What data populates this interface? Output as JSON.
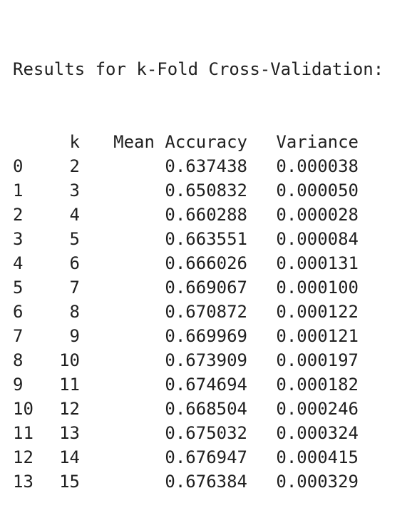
{
  "output": {
    "title": "Results for k-Fold Cross-Validation:",
    "columns": [
      "k",
      "Mean Accuracy",
      "Variance"
    ],
    "rows": [
      {
        "index": "0",
        "k": "2",
        "mean_accuracy": "0.637438",
        "variance": "0.000038"
      },
      {
        "index": "1",
        "k": "3",
        "mean_accuracy": "0.650832",
        "variance": "0.000050"
      },
      {
        "index": "2",
        "k": "4",
        "mean_accuracy": "0.660288",
        "variance": "0.000028"
      },
      {
        "index": "3",
        "k": "5",
        "mean_accuracy": "0.663551",
        "variance": "0.000084"
      },
      {
        "index": "4",
        "k": "6",
        "mean_accuracy": "0.666026",
        "variance": "0.000131"
      },
      {
        "index": "5",
        "k": "7",
        "mean_accuracy": "0.669067",
        "variance": "0.000100"
      },
      {
        "index": "6",
        "k": "8",
        "mean_accuracy": "0.670872",
        "variance": "0.000122"
      },
      {
        "index": "7",
        "k": "9",
        "mean_accuracy": "0.669969",
        "variance": "0.000121"
      },
      {
        "index": "8",
        "k": "10",
        "mean_accuracy": "0.673909",
        "variance": "0.000197"
      },
      {
        "index": "9",
        "k": "11",
        "mean_accuracy": "0.674694",
        "variance": "0.000182"
      },
      {
        "index": "10",
        "k": "12",
        "mean_accuracy": "0.668504",
        "variance": "0.000246"
      },
      {
        "index": "11",
        "k": "13",
        "mean_accuracy": "0.675032",
        "variance": "0.000324"
      },
      {
        "index": "12",
        "k": "14",
        "mean_accuracy": "0.676947",
        "variance": "0.000415"
      },
      {
        "index": "13",
        "k": "15",
        "mean_accuracy": "0.676384",
        "variance": "0.000329"
      }
    ]
  }
}
